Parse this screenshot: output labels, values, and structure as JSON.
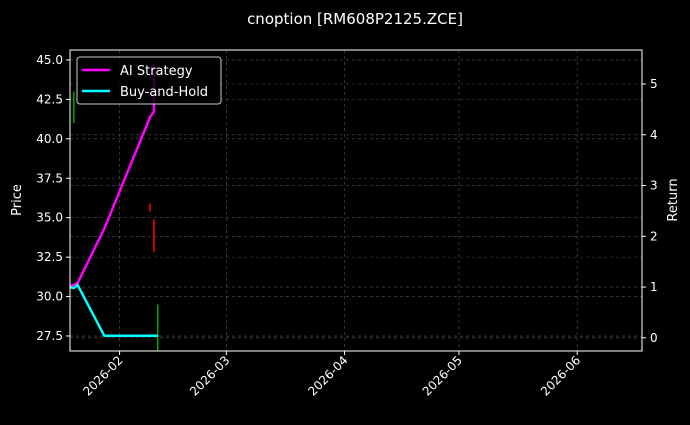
{
  "chart_data": {
    "type": "line",
    "title": "cnoption [RM608P2125.ZCE]",
    "ylabel": "Price",
    "y2label": "Return",
    "xlim": [
      "2026-01-19",
      "2026-06-18"
    ],
    "ylim": [
      26.55,
      45.63
    ],
    "y2lim": [
      -0.26,
      5.67
    ],
    "xticks": [
      "2026-02",
      "2026-03",
      "2026-04",
      "2026-05",
      "2026-06"
    ],
    "xtick_dates": [
      "2026-02-01",
      "2026-03-01",
      "2026-04-01",
      "2026-05-01",
      "2026-06-01"
    ],
    "yticks": [
      "27.5",
      "30.0",
      "32.5",
      "35.0",
      "37.5",
      "40.0",
      "42.5",
      "45.0"
    ],
    "y2ticks": [
      "0",
      "1",
      "2",
      "3",
      "4",
      "5"
    ],
    "grid": true,
    "legend_position": "top-left",
    "candles": [
      {
        "date": "2026-01-20",
        "low": 41.0,
        "high": 43.0,
        "color": "#00aa00"
      },
      {
        "date": "2026-02-09",
        "low": 35.4,
        "high": 35.9,
        "color": "#ff0000"
      },
      {
        "date": "2026-02-10",
        "low": 32.8,
        "high": 34.9,
        "color": "#ff0000"
      },
      {
        "date": "2026-02-11",
        "low": 26.55,
        "high": 29.5,
        "color": "#00aa00"
      }
    ],
    "series": [
      {
        "name": "AI Strategy",
        "color": "#ff00ff",
        "axis": "right",
        "x": [
          "2026-01-19",
          "2026-01-20",
          "2026-01-21",
          "2026-01-28",
          "2026-02-09",
          "2026-02-10",
          "2026-02-10"
        ],
        "values": [
          1.02,
          1.04,
          1.08,
          2.15,
          4.35,
          4.45,
          5.4
        ]
      },
      {
        "name": "Buy-and-Hold",
        "color": "#00ffff",
        "axis": "right",
        "x": [
          "2026-01-19",
          "2026-01-20",
          "2026-01-21",
          "2026-01-28",
          "2026-02-11"
        ],
        "values": [
          1.0,
          0.98,
          1.04,
          0.04,
          0.04
        ]
      }
    ]
  }
}
